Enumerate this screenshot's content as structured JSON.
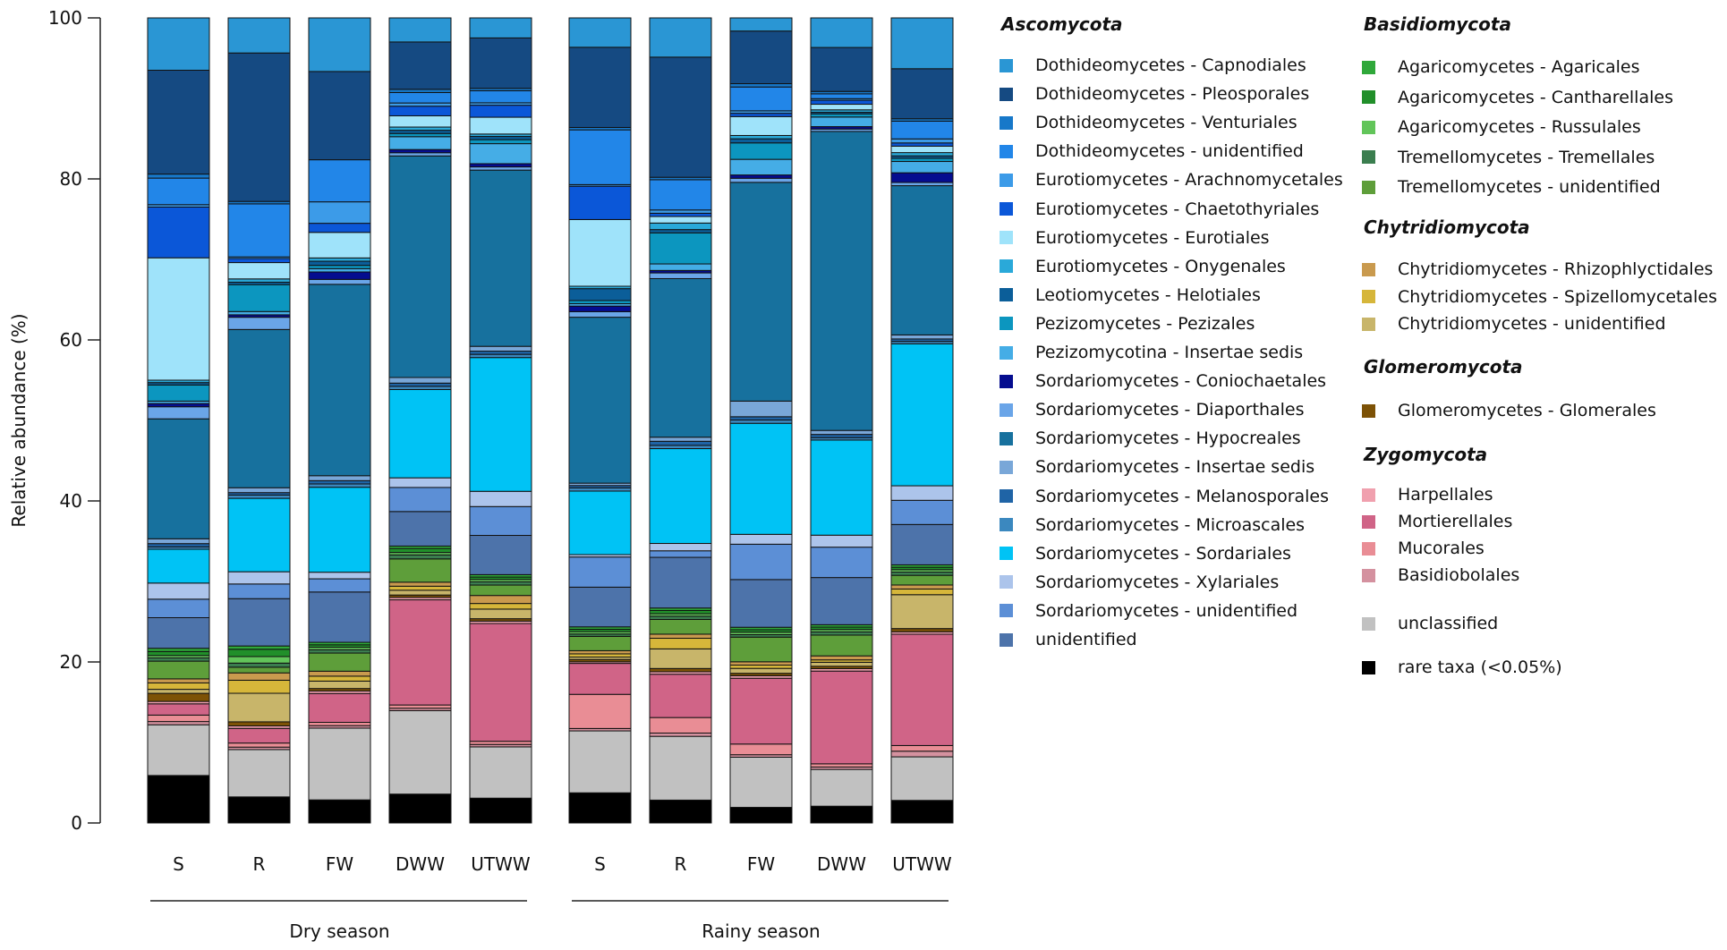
{
  "chart_data": {
    "type": "stacked-bar",
    "ylabel": "Relative abundance (%)",
    "ylim": [
      0,
      100
    ],
    "yticks": [
      "0",
      "20",
      "40",
      "60",
      "80",
      "100"
    ],
    "groups": [
      {
        "label": "Dry season",
        "categories": [
          "S",
          "R",
          "FW",
          "DWW",
          "UTWW"
        ]
      },
      {
        "label": "Rainy season",
        "categories": [
          "S",
          "R",
          "FW",
          "DWW",
          "UTWW"
        ]
      }
    ],
    "series_order": [
      "rare",
      "uncl",
      "basidiobolales",
      "mucorales",
      "mortierellales",
      "harpellales",
      "glomerales",
      "chy_unid",
      "spizello",
      "rhizo",
      "tre_unid",
      "tremellales",
      "russulales",
      "cantharellales",
      "agaricales",
      "unid",
      "sord_unid",
      "xylariales",
      "sordariales",
      "microascales",
      "melanosporales",
      "sord_ins",
      "hypocreales",
      "diaporthales",
      "coniochaetales",
      "pezizomycotina",
      "pezizales",
      "helotiales",
      "onygenales",
      "eurotiales",
      "chaetothyriales",
      "arachno",
      "doth_unid",
      "venturiales",
      "pleosporales",
      "capnodiales"
    ],
    "series": [
      {
        "key": "capnodiales",
        "name": "Dothideomycetes - Capnodiales",
        "color": "#2a96d4",
        "values": [
          6.5,
          4.3,
          6.5,
          3.0,
          2.5,
          3.7,
          4.8,
          1.6,
          3.7,
          6.3
        ]
      },
      {
        "key": "pleosporales",
        "name": "Dothideomycetes - Pleosporales",
        "color": "#154a82",
        "values": [
          12.9,
          18.2,
          10.7,
          5.9,
          6.3,
          10.1,
          14.7,
          6.4,
          5.5,
          6.2
        ]
      },
      {
        "key": "venturiales",
        "name": "Dothideomycetes - Venturiales",
        "color": "#1778c9",
        "values": [
          0.5,
          0.3,
          0,
          0.4,
          0.3,
          0.3,
          0.3,
          0.4,
          0.3,
          0.3
        ]
      },
      {
        "key": "doth_unid",
        "name": "Dothideomycetes - unidentified",
        "color": "#2286e8",
        "values": [
          3.3,
          6.5,
          5.1,
          1.3,
          1.5,
          6.9,
          3.7,
          2.9,
          0.6,
          2.2
        ]
      },
      {
        "key": "arachno",
        "name": "Eurotiomycetes - Arachnomycetales",
        "color": "#3c9be8",
        "values": [
          0.3,
          0.2,
          2.6,
          0.4,
          0.3,
          0.2,
          0.4,
          0.3,
          0.2,
          0.5
        ]
      },
      {
        "key": "chaetothyriales",
        "name": "Eurotiomycetes - Chaetothyriales",
        "color": "#0b57d8",
        "values": [
          6.3,
          0.5,
          1.1,
          1.2,
          1.5,
          4.2,
          0.4,
          0.4,
          0.5,
          0.4
        ]
      },
      {
        "key": "eurotiales",
        "name": "Eurotiomycetes - Eurotiales",
        "color": "#9fe3fa",
        "values": [
          15.2,
          2.0,
          3.1,
          1.4,
          2.1,
          8.4,
          0.8,
          2.3,
          0.7,
          0.8
        ]
      },
      {
        "key": "onygenales",
        "name": "Eurotiomycetes - Onygenales",
        "color": "#2aa9d9",
        "values": [
          0.3,
          0.4,
          0.4,
          0.4,
          0.3,
          0.3,
          0.8,
          0.4,
          0.3,
          0.4
        ]
      },
      {
        "key": "helotiales",
        "name": "Leotiomycetes - Helotiales",
        "color": "#0b5e99",
        "values": [
          0.3,
          0.3,
          0.5,
          0.4,
          0.4,
          1.5,
          0.4,
          0.5,
          0.2,
          0.3
        ]
      },
      {
        "key": "pezizales",
        "name": "Pezizomycetes - Pezizales",
        "color": "#0c96bf",
        "values": [
          2.0,
          3.3,
          0.4,
          0.4,
          0.5,
          0.4,
          3.8,
          2.0,
          0.4,
          0.4
        ]
      },
      {
        "key": "pezizomycotina",
        "name": "Pezizomycotina - Insertae sedis",
        "color": "#45ade6",
        "values": [
          0.3,
          0.4,
          0.4,
          1.6,
          2.5,
          0.3,
          0.8,
          1.9,
          1.2,
          1.4
        ]
      },
      {
        "key": "coniochaetales",
        "name": "Sordariomycetes - Coniochaetales",
        "color": "#050d8f",
        "values": [
          0.4,
          0.3,
          0.9,
          0.4,
          0.4,
          0.7,
          0.3,
          0.4,
          0.3,
          1.2
        ]
      },
      {
        "key": "diaporthales",
        "name": "Sordariomycetes - Diaporthales",
        "color": "#6aa5e8",
        "values": [
          1.5,
          1.5,
          0.6,
          0.4,
          0.4,
          0.7,
          0.7,
          0.5,
          0.3,
          0.4
        ]
      },
      {
        "key": "hypocreales",
        "name": "Sordariomycetes - Hypocreales",
        "color": "#17719e",
        "values": [
          14.9,
          19.4,
          23.2,
          27.6,
          22.0,
          20.9,
          19.4,
          26.6,
          37.4,
          18.5
        ]
      },
      {
        "key": "sord_ins",
        "name": "Sordariomycetes - Insertae sedis",
        "color": "#79a7d8",
        "values": [
          0.6,
          0.6,
          0.6,
          0.7,
          0.6,
          0.3,
          0.5,
          1.9,
          0.5,
          0.5
        ]
      },
      {
        "key": "melanosporales",
        "name": "Sordariomycetes - Melanosporales",
        "color": "#1f64a6",
        "values": [
          0.4,
          0.3,
          0.4,
          0.4,
          0.4,
          0.3,
          0.5,
          0.4,
          0.4,
          0.3
        ]
      },
      {
        "key": "microascales",
        "name": "Sordariomycetes - Microascales",
        "color": "#3b88bf",
        "values": [
          0.3,
          0.4,
          0.4,
          0.4,
          0.4,
          0.4,
          0.4,
          0.4,
          0.3,
          0.3
        ]
      },
      {
        "key": "sordariales",
        "name": "Sordariomycetes - Sordariales",
        "color": "#00c3f5",
        "values": [
          4.2,
          9.0,
          10.3,
          11.0,
          16.7,
          8.0,
          11.6,
          13.5,
          11.9,
          17.6
        ]
      },
      {
        "key": "xylariales",
        "name": "Sordariomycetes - Xylariales",
        "color": "#acc4eb",
        "values": [
          2.0,
          1.5,
          0.8,
          1.2,
          1.9,
          0.3,
          0.9,
          1.2,
          1.5,
          1.8
        ]
      },
      {
        "key": "sord_unid",
        "name": "Sordariomycetes - unidentified",
        "color": "#5c8fd6",
        "values": [
          2.3,
          1.8,
          1.6,
          3.0,
          3.6,
          3.8,
          0.8,
          4.3,
          3.8,
          3.0
        ]
      },
      {
        "key": "unid",
        "name": "unidentified",
        "color": "#4d73aa",
        "values": [
          3.8,
          5.8,
          6.1,
          4.3,
          4.9,
          5.0,
          6.2,
          5.8,
          5.9,
          5.0
        ]
      },
      {
        "key": "agaricales",
        "name": "Agaricomycetes - Agaricales",
        "color": "#2fa83a",
        "values": [
          0.4,
          0.4,
          0.3,
          0.3,
          0.3,
          0.3,
          0.3,
          0.3,
          0.3,
          0.3
        ]
      },
      {
        "key": "cantharellales",
        "name": "Agaricomycetes - Cantharellales",
        "color": "#218f2a",
        "values": [
          0.5,
          0.9,
          0.3,
          0.5,
          0.3,
          0.3,
          0.4,
          0.3,
          0.3,
          0.3
        ]
      },
      {
        "key": "russulales",
        "name": "Agaricomycetes - Russulales",
        "color": "#62c55a",
        "values": [
          0.3,
          0.8,
          0.3,
          0.3,
          0.3,
          0.3,
          0.3,
          0.3,
          0.3,
          0.3
        ]
      },
      {
        "key": "tremellales",
        "name": "Tremellomycetes - Tremellales",
        "color": "#3b7e4f",
        "values": [
          0.4,
          0.5,
          0.4,
          0.5,
          0.4,
          0.3,
          0.4,
          0.3,
          0.4,
          0.4
        ]
      },
      {
        "key": "tre_unid",
        "name": "Tremellomycetes - unidentified",
        "color": "#5e9e3a",
        "values": [
          2.2,
          0.7,
          2.2,
          2.9,
          1.3,
          1.8,
          1.8,
          3.0,
          2.6,
          1.2
        ]
      },
      {
        "key": "rhizo",
        "name": "Chytridiomycetes - Rhizophlyctidales",
        "color": "#c99a4e",
        "values": [
          0.5,
          0.9,
          0.6,
          0.5,
          1.0,
          0.4,
          0.5,
          0.4,
          0.5,
          0.5
        ]
      },
      {
        "key": "spizello",
        "name": "Chytridiomycetes - Spizellomycetales",
        "color": "#d6b63a",
        "values": [
          0.8,
          1.6,
          0.6,
          0.5,
          0.7,
          0.4,
          1.3,
          0.4,
          0.3,
          0.7
        ]
      },
      {
        "key": "chy_unid",
        "name": "Chytridiomycetes - unidentified",
        "color": "#c8b56a",
        "values": [
          0.5,
          3.5,
          0.9,
          0.6,
          1.2,
          0.3,
          2.4,
          0.6,
          0.5,
          4.2
        ]
      },
      {
        "key": "glomerales",
        "name": "Glomeromycetes - Glomerales",
        "color": "#7d5206",
        "values": [
          1.0,
          0.5,
          0.3,
          0.3,
          0.3,
          0.3,
          0.4,
          0.3,
          0.3,
          0.4
        ]
      },
      {
        "key": "harpellales",
        "name": "Harpellales",
        "color": "#f0a0ae",
        "values": [
          0.3,
          0.3,
          0.3,
          0.3,
          0.3,
          0.2,
          0.3,
          0.3,
          0.3,
          0.3
        ]
      },
      {
        "key": "mortierellales",
        "name": "Mortierellales",
        "color": "#d06487",
        "values": [
          1.4,
          1.8,
          3.5,
          13.1,
          14.7,
          3.9,
          5.3,
          8.0,
          11.6,
          13.8
        ]
      },
      {
        "key": "mucorales",
        "name": "Mucorales",
        "color": "#e98d95",
        "values": [
          0.8,
          0.5,
          0.4,
          0.4,
          0.4,
          4.3,
          1.9,
          1.3,
          0.4,
          0.7
        ]
      },
      {
        "key": "basidiobolales",
        "name": "Basidiobolales",
        "color": "#d4919f",
        "values": [
          0.4,
          0.3,
          0.3,
          0.3,
          0.3,
          0.3,
          0.4,
          0.3,
          0.3,
          0.7
        ]
      },
      {
        "key": "uncl",
        "name": "unclassified",
        "color": "#c1c1c1",
        "values": [
          6.3,
          5.8,
          8.7,
          10.4,
          6.4,
          7.8,
          7.8,
          6.1,
          4.6,
          5.4
        ]
      },
      {
        "key": "rare",
        "name": "rare taxa (<0.05%)",
        "color": "#000000",
        "values": [
          5.9,
          3.2,
          2.8,
          3.6,
          3.1,
          3.8,
          2.8,
          1.9,
          2.1,
          2.8
        ]
      }
    ]
  },
  "legend": {
    "left": [
      {
        "title": "Ascomycota",
        "items": [
          "capnodiales",
          "pleosporales",
          "venturiales",
          "doth_unid",
          "arachno",
          "chaetothyriales",
          "eurotiales",
          "onygenales",
          "helotiales",
          "pezizales",
          "pezizomycotina",
          "coniochaetales",
          "diaporthales",
          "hypocreales",
          "sord_ins",
          "melanosporales",
          "microascales",
          "sordariales",
          "xylariales",
          "sord_unid",
          "unid"
        ]
      }
    ],
    "right": [
      {
        "title": "Basidiomycota",
        "items": [
          "agaricales",
          "cantharellales",
          "russulales",
          "tremellales",
          "tre_unid"
        ]
      },
      {
        "title": "Chytridiomycota",
        "items": [
          "rhizo",
          "spizello",
          "chy_unid"
        ]
      },
      {
        "title": "Glomeromycota",
        "items": [
          "glomerales"
        ]
      },
      {
        "title": "Zygomycota",
        "items": [
          "harpellales",
          "mortierellales",
          "mucorales",
          "basidiobolales"
        ]
      },
      {
        "title": "",
        "items": [
          "uncl"
        ]
      },
      {
        "title": "",
        "items": [
          "rare"
        ]
      }
    ]
  }
}
